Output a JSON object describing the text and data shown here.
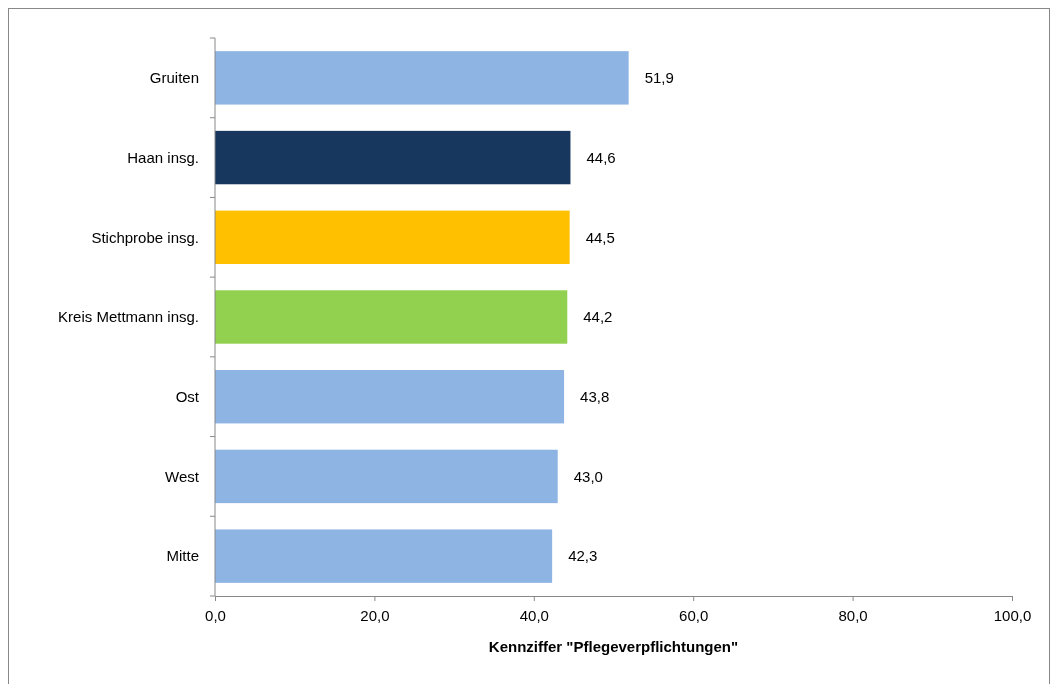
{
  "chart_data": {
    "type": "bar",
    "orientation": "horizontal",
    "xlabel": "Kennziffer \"Pflegeverpflichtungen\"",
    "categories": [
      "Gruiten",
      "Haan insg.",
      "Stichprobe insg.",
      "Kreis Mettmann insg.",
      "Ost",
      "West",
      "Mitte"
    ],
    "values": [
      51.9,
      44.6,
      44.5,
      44.2,
      43.8,
      43.0,
      42.3
    ],
    "colors": [
      "#8eb4e3",
      "#17375e",
      "#ffc000",
      "#92d050",
      "#8eb4e3",
      "#8eb4e3",
      "#8eb4e3"
    ],
    "xlim": [
      0,
      100
    ],
    "xticks": [
      {
        "value": 0,
        "label": "0,0"
      },
      {
        "value": 20,
        "label": "20,0"
      },
      {
        "value": 40,
        "label": "40,0"
      },
      {
        "value": 60,
        "label": "60,0"
      },
      {
        "value": 80,
        "label": "80,0"
      },
      {
        "value": 100,
        "label": "100,0"
      }
    ],
    "value_labels": [
      "51,9",
      "44,6",
      "44,5",
      "44,2",
      "43,8",
      "43,0",
      "42,3"
    ],
    "grid": false
  }
}
